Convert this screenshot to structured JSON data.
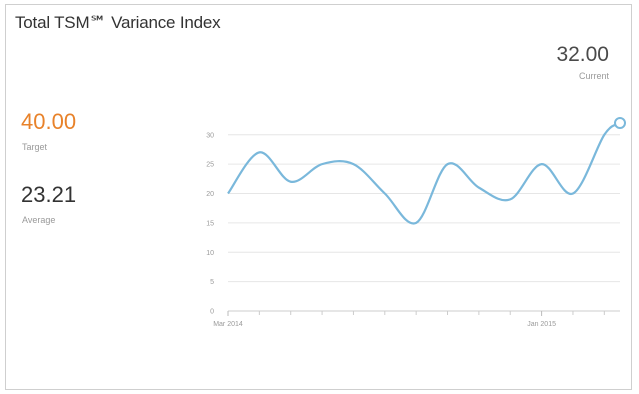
{
  "title": "Total TSM℠ Variance Index",
  "current": {
    "value": "32.00",
    "label": "Current"
  },
  "target": {
    "value": "40.00",
    "label": "Target"
  },
  "average": {
    "value": "23.21",
    "label": "Average"
  },
  "colors": {
    "line": "#7ab8db",
    "target": "#e8822a",
    "grid": "#e6e6e6"
  },
  "chart_data": {
    "type": "line",
    "ylim": [
      0,
      32
    ],
    "yticks": [
      0,
      5,
      10,
      15,
      20,
      25,
      30
    ],
    "xlim": [
      0,
      12.5
    ],
    "xticks": [
      {
        "x": 0,
        "label": "Mar 2014"
      },
      {
        "x": 10,
        "label": "Jan 2015"
      }
    ],
    "minor_xticks": [
      1,
      2,
      3,
      4,
      5,
      6,
      7,
      8,
      9,
      11,
      12
    ],
    "grid": true,
    "series": [
      {
        "x": [
          0,
          1,
          2,
          3,
          4,
          5,
          6,
          7,
          8,
          9,
          10,
          11,
          12,
          12.5
        ],
        "values": [
          20,
          27,
          22,
          25,
          25,
          20,
          15,
          25,
          21,
          19,
          25,
          20,
          30,
          32
        ],
        "end_marker": true
      }
    ]
  }
}
